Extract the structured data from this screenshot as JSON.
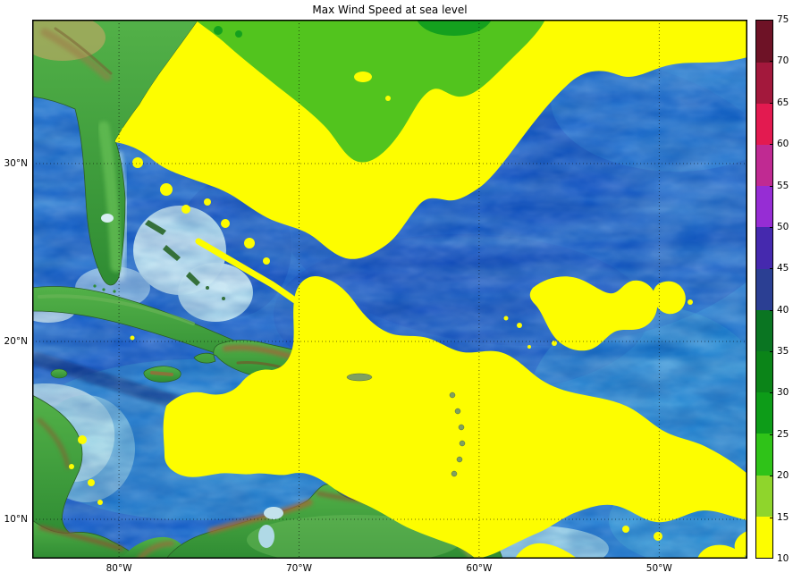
{
  "figure": {
    "title": "Max Wind Speed at sea level",
    "background_color": "#ffffff"
  },
  "chart_data": {
    "type": "heatmap",
    "subtype": "geographic filled-contour wind-speed map over shaded-relief (ETOPO-style) basemap",
    "title": "Max Wind Speed at sea level",
    "region": "Caribbean Sea and western North Atlantic (Florida / Bahamas / Cuba / Hispaniola / Venezuela to ~45W)",
    "grid": {
      "visible": true,
      "style": "dotted black graticule"
    },
    "x_axis": {
      "kind": "longitude",
      "range_deg": [
        -84.82,
        -45.1
      ],
      "ticks": [
        {
          "value": -80,
          "label": "80°W"
        },
        {
          "value": -70,
          "label": "70°W"
        },
        {
          "value": -60,
          "label": "60°W"
        },
        {
          "value": -50,
          "label": "50°W"
        }
      ]
    },
    "y_axis": {
      "kind": "latitude",
      "range_deg": [
        7.79,
        38.09
      ],
      "ticks": [
        {
          "value": 30,
          "label": "30°N"
        },
        {
          "value": 20,
          "label": "20°N"
        },
        {
          "value": 10,
          "label": "10°N"
        }
      ]
    },
    "colorbar": {
      "orientation": "vertical",
      "position": "right",
      "min": 10,
      "max": 75,
      "step": 5,
      "tick_labels": [
        "10",
        "15",
        "20",
        "25",
        "30",
        "35",
        "40",
        "45",
        "50",
        "55",
        "60",
        "65",
        "70",
        "75"
      ],
      "band_colors_bottom_to_top": [
        "#fdfd00",
        "#8fd52c",
        "#2fc318",
        "#0d9c18",
        "#0b8418",
        "#0a7522",
        "#2b3f93",
        "#4529ae",
        "#962dd4",
        "#c02a92",
        "#e31a50",
        "#a3183c",
        "#6e1226"
      ]
    },
    "visible_wind_bands": [
      {
        "range": "10-15",
        "color": "#fdfd00",
        "where": "large yellow areas: subtropics off SE US, central Caribbean, band toward tropical Atlantic and SE corner, scattered mid-Atlantic patches"
      },
      {
        "range": "15-20",
        "color": "#8fd52c",
        "where": "green band along northern edge (~33-38N)"
      },
      {
        "range": "20-25",
        "color": "#2fc318",
        "where": "small darker green patches at the very top edge"
      },
      {
        "range": "below 10",
        "color": "relief basemap visible",
        "where": "deep-blue textured ocean regions (NW Atlantic patch, large NE Atlantic area, Caribbean troughs)"
      }
    ]
  }
}
